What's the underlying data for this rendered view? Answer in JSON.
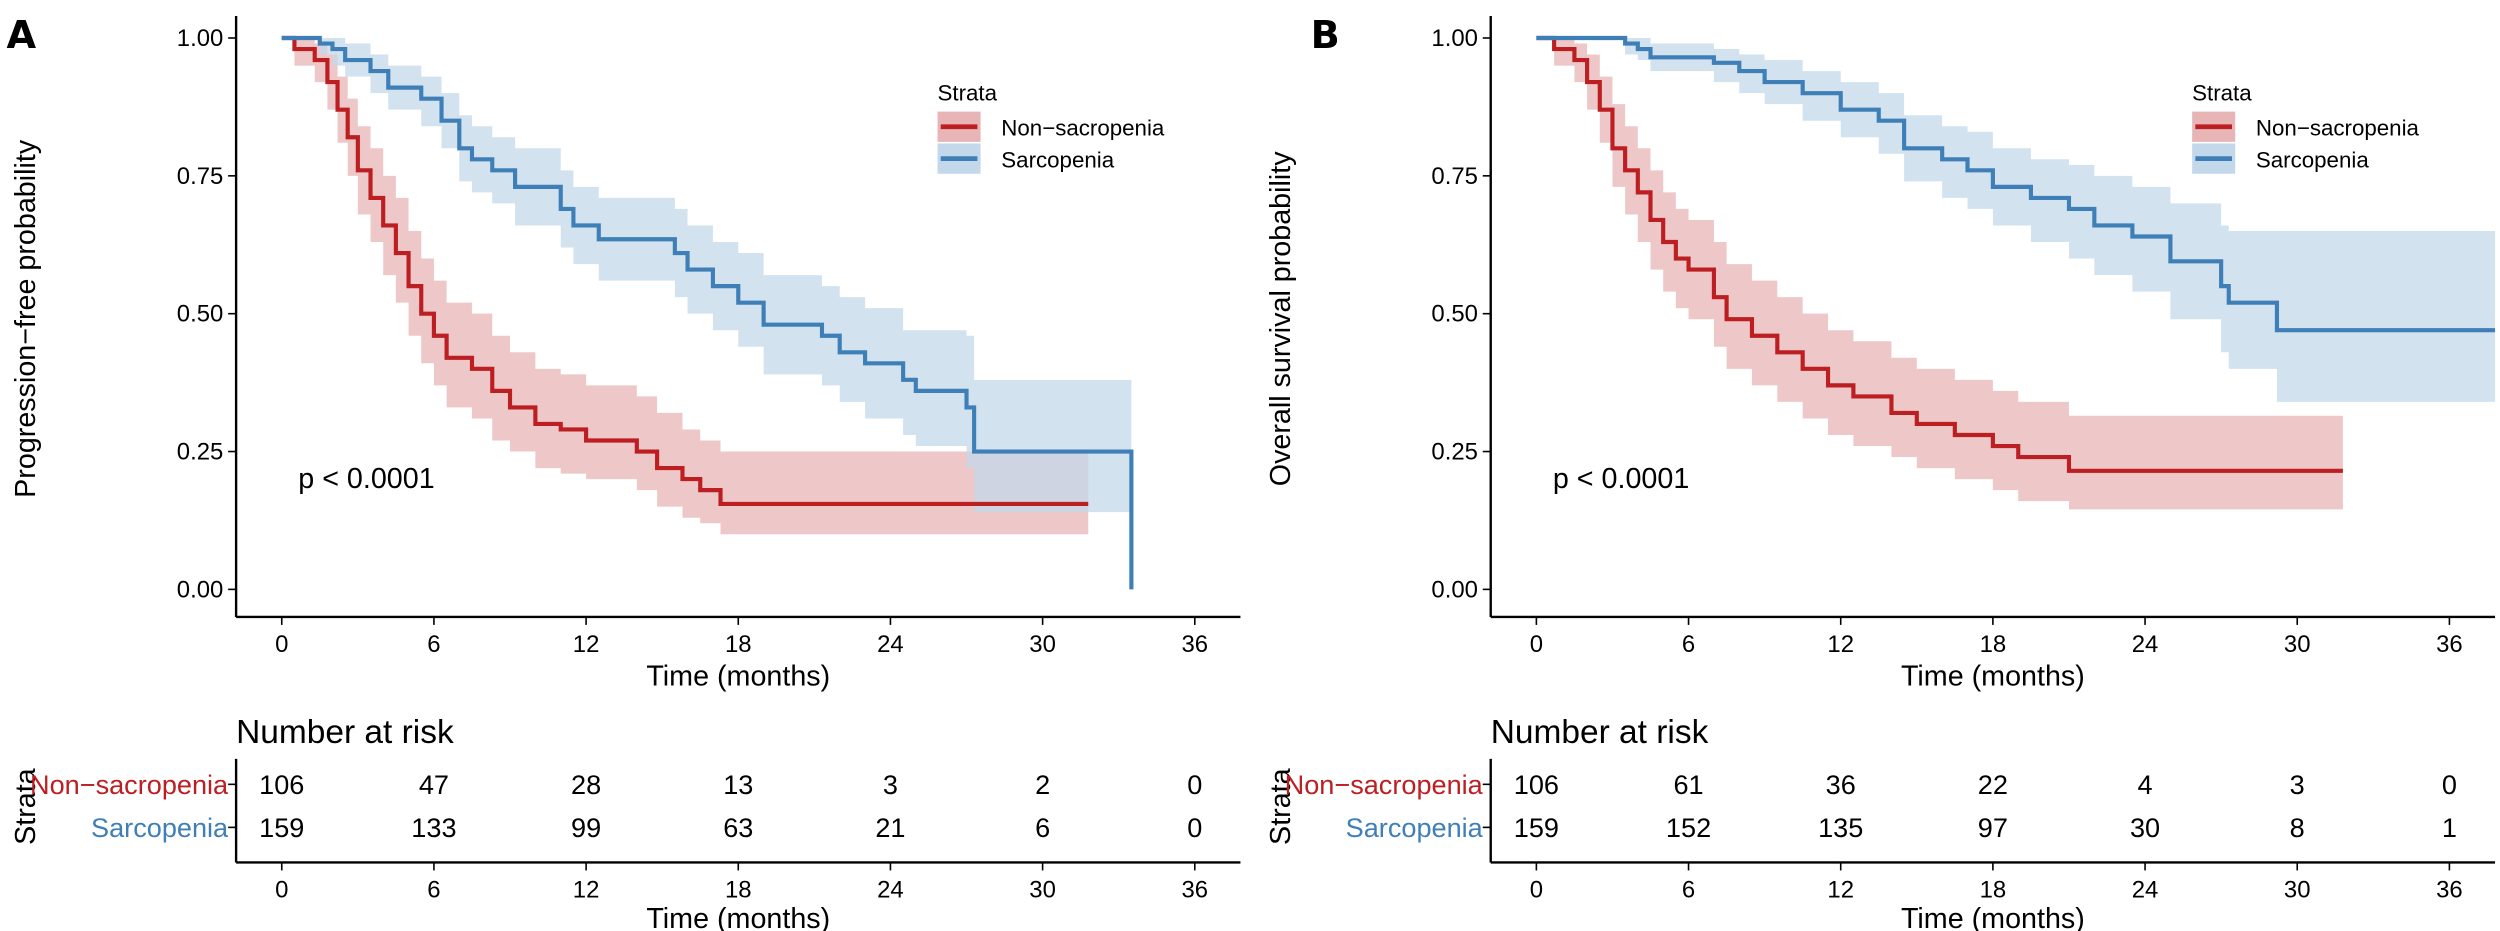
{
  "chart_data": [
    {
      "panel": "A",
      "type": "line",
      "step": true,
      "ylabel": "Progression−free probability",
      "xlabel": "Time (months)",
      "xticks": [
        0,
        6,
        12,
        18,
        24,
        30,
        36
      ],
      "yticks": [
        "0.00",
        "0.25",
        "0.50",
        "0.75",
        "1.00"
      ],
      "xlim": [
        -1.8,
        37.8
      ],
      "ylim": [
        -0.05,
        1.04
      ],
      "grid": false,
      "legend": {
        "title": "Strata",
        "placement": "top-right"
      },
      "pvalue": "p < 0.0001",
      "series": [
        {
          "name": "Non−sacropenia",
          "color": "#BC1E22",
          "band_color": "#E8B5B6",
          "points": [
            [
              0,
              1,
              1,
              1
            ],
            [
              0.5,
              0.98,
              0.95,
              1
            ],
            [
              1.3,
              0.96,
              0.92,
              0.99
            ],
            [
              1.8,
              0.92,
              0.87,
              0.97
            ],
            [
              2.2,
              0.87,
              0.81,
              0.93
            ],
            [
              2.6,
              0.82,
              0.75,
              0.89
            ],
            [
              3,
              0.76,
              0.68,
              0.84
            ],
            [
              3.5,
              0.71,
              0.63,
              0.8
            ],
            [
              4,
              0.66,
              0.57,
              0.75
            ],
            [
              4.5,
              0.61,
              0.52,
              0.71
            ],
            [
              5,
              0.55,
              0.46,
              0.65
            ],
            [
              5.5,
              0.5,
              0.41,
              0.6
            ],
            [
              6,
              0.46,
              0.37,
              0.56
            ],
            [
              6.5,
              0.42,
              0.33,
              0.52
            ],
            [
              7.5,
              0.4,
              0.31,
              0.5
            ],
            [
              8.3,
              0.36,
              0.27,
              0.46
            ],
            [
              9,
              0.33,
              0.25,
              0.43
            ],
            [
              10,
              0.3,
              0.22,
              0.4
            ],
            [
              11,
              0.29,
              0.21,
              0.39
            ],
            [
              12,
              0.27,
              0.2,
              0.37
            ],
            [
              14,
              0.25,
              0.18,
              0.35
            ],
            [
              14.8,
              0.22,
              0.15,
              0.32
            ],
            [
              15.8,
              0.2,
              0.13,
              0.29
            ],
            [
              16.5,
              0.18,
              0.12,
              0.27
            ],
            [
              17.3,
              0.155,
              0.1,
              0.25
            ],
            [
              31.8,
              0.155,
              0.1,
              0.25
            ]
          ]
        },
        {
          "name": "Sarcopenia",
          "color": "#3F7FB8",
          "band_color": "#C3D8EA",
          "points": [
            [
              0,
              1,
              1,
              1
            ],
            [
              1.5,
              0.99,
              0.97,
              1
            ],
            [
              2,
              0.98,
              0.95,
              1
            ],
            [
              2.5,
              0.96,
              0.93,
              0.99
            ],
            [
              3.5,
              0.94,
              0.9,
              0.97
            ],
            [
              4.2,
              0.91,
              0.87,
              0.95
            ],
            [
              5.5,
              0.89,
              0.84,
              0.93
            ],
            [
              6.3,
              0.85,
              0.8,
              0.9
            ],
            [
              7,
              0.8,
              0.74,
              0.86
            ],
            [
              7.5,
              0.78,
              0.72,
              0.84
            ],
            [
              8.3,
              0.76,
              0.7,
              0.82
            ],
            [
              9.2,
              0.73,
              0.66,
              0.8
            ],
            [
              11,
              0.69,
              0.62,
              0.76
            ],
            [
              11.5,
              0.66,
              0.59,
              0.73
            ],
            [
              12.5,
              0.635,
              0.56,
              0.71
            ],
            [
              15.5,
              0.61,
              0.53,
              0.69
            ],
            [
              16,
              0.58,
              0.5,
              0.66
            ],
            [
              17,
              0.55,
              0.47,
              0.63
            ],
            [
              18,
              0.52,
              0.44,
              0.61
            ],
            [
              19,
              0.48,
              0.39,
              0.57
            ],
            [
              21.3,
              0.46,
              0.37,
              0.55
            ],
            [
              22,
              0.43,
              0.34,
              0.53
            ],
            [
              23,
              0.41,
              0.31,
              0.51
            ],
            [
              24.5,
              0.38,
              0.28,
              0.47
            ],
            [
              25,
              0.36,
              0.26,
              0.47
            ],
            [
              27,
              0.33,
              0.22,
              0.46
            ],
            [
              27.3,
              0.25,
              0.14,
              0.38
            ],
            [
              32.3,
              0.25,
              0.14,
              0.38
            ],
            [
              33.5,
              0,
              0,
              0
            ]
          ]
        }
      ],
      "risk_table": {
        "title": "Number at risk",
        "strata_label": "Strata",
        "xlabel": "Time (months)",
        "times": [
          0,
          6,
          12,
          18,
          24,
          30,
          36
        ],
        "rows": [
          {
            "name": "Non−sacropenia",
            "color": "#BC1E22",
            "values": [
              106,
              47,
              28,
              13,
              3,
              2,
              0
            ]
          },
          {
            "name": "Sarcopenia",
            "color": "#3F7FB8",
            "values": [
              159,
              133,
              99,
              63,
              21,
              6,
              0
            ]
          }
        ]
      }
    },
    {
      "panel": "B",
      "type": "line",
      "step": true,
      "ylabel": "Overall survival probability",
      "xlabel": "Time (months)",
      "xticks": [
        0,
        6,
        12,
        18,
        24,
        30,
        36
      ],
      "yticks": [
        "0.00",
        "0.25",
        "0.50",
        "0.75",
        "1.00"
      ],
      "xlim": [
        -1.8,
        37.8
      ],
      "ylim": [
        -0.05,
        1.04
      ],
      "grid": false,
      "legend": {
        "title": "Strata",
        "placement": "top-right"
      },
      "pvalue": "p < 0.0001",
      "series": [
        {
          "name": "Non−sacropenia",
          "color": "#BC1E22",
          "band_color": "#E8B5B6",
          "points": [
            [
              0,
              1,
              1,
              1
            ],
            [
              0.7,
              0.98,
              0.95,
              1
            ],
            [
              1.5,
              0.96,
              0.92,
              0.99
            ],
            [
              2,
              0.92,
              0.87,
              0.97
            ],
            [
              2.5,
              0.87,
              0.81,
              0.93
            ],
            [
              3,
              0.8,
              0.73,
              0.88
            ],
            [
              3.5,
              0.76,
              0.68,
              0.84
            ],
            [
              4,
              0.72,
              0.63,
              0.8
            ],
            [
              4.5,
              0.67,
              0.58,
              0.76
            ],
            [
              5,
              0.63,
              0.54,
              0.72
            ],
            [
              5.5,
              0.6,
              0.51,
              0.69
            ],
            [
              6,
              0.58,
              0.49,
              0.67
            ],
            [
              7,
              0.53,
              0.44,
              0.63
            ],
            [
              7.5,
              0.49,
              0.4,
              0.59
            ],
            [
              8.5,
              0.46,
              0.37,
              0.56
            ],
            [
              9.5,
              0.43,
              0.34,
              0.53
            ],
            [
              10.5,
              0.4,
              0.31,
              0.5
            ],
            [
              11.5,
              0.37,
              0.28,
              0.47
            ],
            [
              12.5,
              0.35,
              0.26,
              0.45
            ],
            [
              14,
              0.32,
              0.24,
              0.42
            ],
            [
              15,
              0.3,
              0.22,
              0.4
            ],
            [
              16.5,
              0.28,
              0.2,
              0.38
            ],
            [
              18,
              0.26,
              0.18,
              0.36
            ],
            [
              19,
              0.24,
              0.16,
              0.34
            ],
            [
              21,
              0.215,
              0.145,
              0.315
            ],
            [
              31.8,
              0.215,
              0.145,
              0.315
            ]
          ]
        },
        {
          "name": "Sarcopenia",
          "color": "#3F7FB8",
          "band_color": "#C3D8EA",
          "points": [
            [
              0,
              1,
              1,
              1
            ],
            [
              3.5,
              0.99,
              0.97,
              1
            ],
            [
              4,
              0.98,
              0.96,
              1
            ],
            [
              4.5,
              0.965,
              0.94,
              0.99
            ],
            [
              7,
              0.955,
              0.92,
              0.98
            ],
            [
              8,
              0.94,
              0.9,
              0.97
            ],
            [
              9,
              0.92,
              0.88,
              0.96
            ],
            [
              10.5,
              0.9,
              0.85,
              0.94
            ],
            [
              12,
              0.87,
              0.82,
              0.92
            ],
            [
              13.5,
              0.85,
              0.79,
              0.9
            ],
            [
              14.5,
              0.8,
              0.74,
              0.86
            ],
            [
              16,
              0.78,
              0.71,
              0.84
            ],
            [
              17,
              0.76,
              0.69,
              0.83
            ],
            [
              18,
              0.73,
              0.66,
              0.8
            ],
            [
              19.5,
              0.71,
              0.63,
              0.78
            ],
            [
              21,
              0.69,
              0.6,
              0.77
            ],
            [
              22,
              0.66,
              0.57,
              0.75
            ],
            [
              23.5,
              0.64,
              0.54,
              0.73
            ],
            [
              25,
              0.595,
              0.49,
              0.7
            ],
            [
              27,
              0.55,
              0.43,
              0.66
            ],
            [
              27.3,
              0.52,
              0.4,
              0.65
            ],
            [
              29.2,
              0.47,
              0.34,
              0.65
            ],
            [
              37.8,
              0.47,
              0.34,
              0.65
            ]
          ]
        }
      ],
      "risk_table": {
        "title": "Number at risk",
        "strata_label": "Strata",
        "xlabel": "Time (months)",
        "times": [
          0,
          6,
          12,
          18,
          24,
          30,
          36
        ],
        "rows": [
          {
            "name": "Non−sacropenia",
            "color": "#BC1E22",
            "values": [
              106,
              61,
              36,
              22,
              4,
              3,
              0
            ]
          },
          {
            "name": "Sarcopenia",
            "color": "#3F7FB8",
            "values": [
              159,
              152,
              135,
              97,
              30,
              8,
              1
            ]
          }
        ]
      }
    }
  ]
}
